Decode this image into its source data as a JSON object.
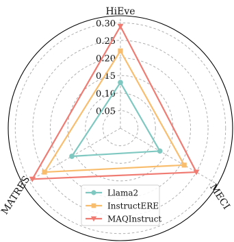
{
  "chart_data": {
    "type": "radar",
    "axes": [
      "HiEve",
      "MECI",
      "MATRES"
    ],
    "radial_ticks": [
      "0.05",
      "0.10",
      "0.15",
      "0.20",
      "0.25",
      "0.30"
    ],
    "rlim": [
      0,
      0.32
    ],
    "grid": true,
    "legend_position": "bottom-center",
    "series": [
      {
        "name": "Llama2",
        "values": [
          0.13,
          0.13,
          0.16
        ],
        "color": "#7fc8c1",
        "marker": "circle"
      },
      {
        "name": "InstructERE",
        "values": [
          0.22,
          0.21,
          0.25
        ],
        "color": "#f9bd6e",
        "marker": "square"
      },
      {
        "name": "MAQInstruct",
        "values": [
          0.29,
          0.25,
          0.29
        ],
        "color": "#ef7b72",
        "marker": "triangle-down"
      }
    ]
  }
}
